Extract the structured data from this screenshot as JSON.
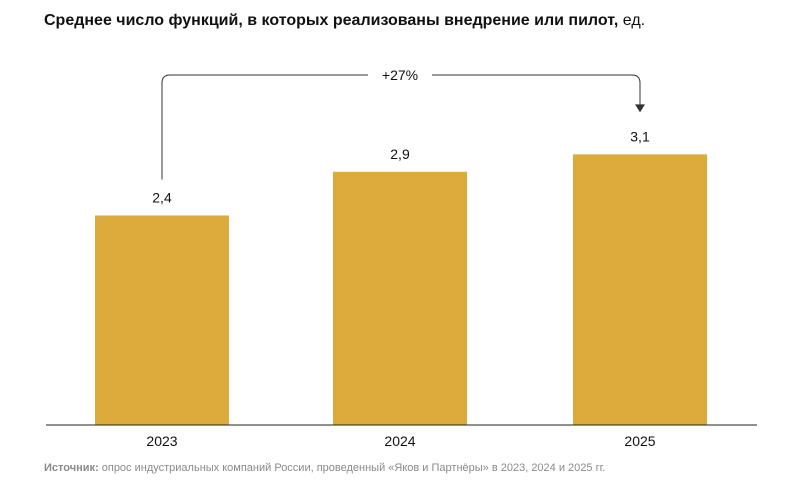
{
  "title": {
    "main": "Среднее число функций, в которых реализованы внедрение или пилот,",
    "unit": " ед."
  },
  "chart_data": {
    "type": "bar",
    "categories": [
      "2023",
      "2024",
      "2025"
    ],
    "values": [
      2.4,
      2.9,
      3.1
    ],
    "value_labels": [
      "2,4",
      "2,9",
      "3,1"
    ],
    "ylim": [
      0,
      3.5
    ],
    "grid": false,
    "bar_color": "#DCAB3C",
    "annotation": {
      "text": "+27%",
      "from": "2023",
      "to": "2025"
    }
  },
  "source": {
    "label": "Источник:",
    "text": " опрос индустриальных компаний России, проведенный «Яков и Партнёры» в 2023, 2024 и 2025 гг."
  }
}
